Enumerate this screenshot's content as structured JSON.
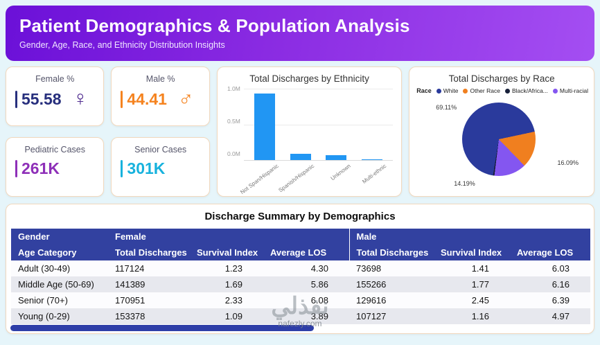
{
  "header": {
    "title": "Patient Demographics & Population Analysis",
    "subtitle": "Gender, Age, Race, and Ethnicity Distribution Insights"
  },
  "kpis": [
    {
      "label": "Female %",
      "value": "55.58",
      "color": "#272f7d",
      "icon": "female-symbol",
      "glyph": "♀",
      "icon_color": "#4f2b8f"
    },
    {
      "label": "Male %",
      "value": "44.41",
      "color": "#f5831f",
      "icon": "male-symbol",
      "glyph": "♂",
      "icon_color": "#f5831f"
    },
    {
      "label": "Pediatric Cases",
      "value": "261K",
      "color": "#8e2fb8"
    },
    {
      "label": "Senior Cases",
      "value": "301K",
      "color": "#17b2dd"
    }
  ],
  "chart_data": [
    {
      "type": "bar",
      "title": "Total Discharges by Ethnicity",
      "categories": [
        "Not Span/Hispanic",
        "Spanish/Hispanic",
        "Unknown",
        "Multi-ethnic"
      ],
      "values": [
        0.93,
        0.09,
        0.07,
        0.01
      ],
      "unit": "millions of discharges",
      "yticks": [
        "1.0M",
        "0.5M",
        "0.0M"
      ],
      "ylim": [
        0,
        1.0
      ],
      "bar_color": "#2196f3",
      "grid": true
    },
    {
      "type": "pie",
      "title": "Total Discharges by Race",
      "legend_title": "Race",
      "legend_position": "top",
      "start_angle": 78,
      "draw_order": [
        1,
        3,
        2,
        0
      ],
      "slices": [
        {
          "label": "White",
          "pct": 69.11,
          "pct_label": "69.11%",
          "color": "#2a3a9c"
        },
        {
          "label": "Other Race",
          "pct": 16.09,
          "pct_label": "16.09%",
          "color": "#f07f1f"
        },
        {
          "label": "Black/Africa...",
          "pct": null,
          "pct_label": "",
          "color": "#17203a"
        },
        {
          "label": "Multi-racial",
          "pct": 14.19,
          "pct_label": "14.19%",
          "color": "#8456f0"
        }
      ]
    }
  ],
  "summary_table": {
    "title": "Discharge Summary by Demographics",
    "group_headers": [
      "Gender",
      "Female",
      "Male"
    ],
    "column_headers": [
      "Age Category",
      "Total Discharges",
      "Survival Index",
      "Average LOS",
      "Total Discharges",
      "Survival Index",
      "Average LOS"
    ],
    "rows": [
      [
        "Adult (30-49)",
        "117124",
        "1.23",
        "4.30",
        "73698",
        "1.41",
        "6.03"
      ],
      [
        "Middle Age (50-69)",
        "141389",
        "1.69",
        "5.86",
        "155266",
        "1.77",
        "6.16"
      ],
      [
        "Senior (70+)",
        "170951",
        "2.33",
        "6.08",
        "129616",
        "2.45",
        "6.39"
      ],
      [
        "Young (0-29)",
        "153378",
        "1.09",
        "3.89",
        "107127",
        "1.16",
        "4.97"
      ]
    ]
  },
  "watermark": {
    "text": "نفذلي",
    "site": "nafezly.com"
  }
}
